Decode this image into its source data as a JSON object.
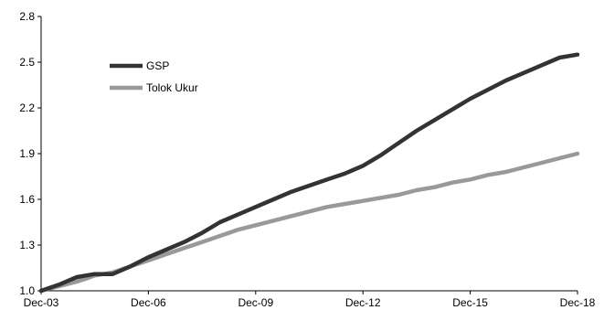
{
  "chart_data": {
    "type": "line",
    "title": "",
    "xlabel": "",
    "ylabel": "",
    "x_ticks": [
      "Dec-03",
      "Dec-06",
      "Dec-09",
      "Dec-12",
      "Dec-15",
      "Dec-18"
    ],
    "y_ticks": [
      "1.0",
      "1.3",
      "1.6",
      "1.9",
      "2.2",
      "2.5",
      "2.8"
    ],
    "xlim": [
      "Dec-03",
      "Dec-18"
    ],
    "ylim": [
      1.0,
      2.8
    ],
    "grid": false,
    "legend_position": "top-left",
    "x": [
      "Dec-03",
      "Jun-04",
      "Dec-04",
      "Mar-05",
      "Jun-05",
      "Dec-05",
      "Jun-06",
      "Dec-06",
      "Jun-07",
      "Dec-07",
      "Jun-08",
      "Dec-08",
      "Jun-09",
      "Dec-09",
      "Jun-10",
      "Dec-10",
      "Jun-11",
      "Dec-11",
      "Jun-12",
      "Dec-12",
      "Jun-13",
      "Dec-13",
      "Jun-14",
      "Dec-14",
      "Jun-15",
      "Dec-15",
      "Jun-16",
      "Dec-16",
      "Jun-17",
      "Dec-17",
      "Jun-18",
      "Dec-18"
    ],
    "series": [
      {
        "name": "GSP",
        "color": "#333333",
        "values": [
          1.0,
          1.04,
          1.09,
          1.1,
          1.11,
          1.11,
          1.16,
          1.22,
          1.27,
          1.32,
          1.38,
          1.45,
          1.5,
          1.55,
          1.6,
          1.65,
          1.69,
          1.73,
          1.77,
          1.82,
          1.89,
          1.97,
          2.05,
          2.12,
          2.19,
          2.26,
          2.32,
          2.38,
          2.43,
          2.48,
          2.53,
          2.55
        ]
      },
      {
        "name": "Tolok Ukur",
        "color": "#999999",
        "values": [
          1.0,
          1.03,
          1.06,
          1.08,
          1.1,
          1.12,
          1.16,
          1.2,
          1.24,
          1.28,
          1.32,
          1.36,
          1.4,
          1.43,
          1.46,
          1.49,
          1.52,
          1.55,
          1.57,
          1.59,
          1.61,
          1.63,
          1.66,
          1.68,
          1.71,
          1.73,
          1.76,
          1.78,
          1.81,
          1.84,
          1.87,
          1.9
        ]
      }
    ]
  }
}
